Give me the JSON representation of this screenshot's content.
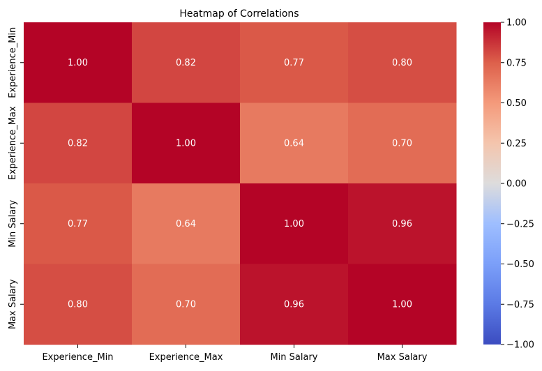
{
  "chart_data": {
    "type": "heatmap",
    "title": "Heatmap of Correlations",
    "xlabel": "",
    "ylabel": "",
    "x_categories": [
      "Experience_Min",
      "Experience_Max",
      "Min Salary",
      "Max Salary"
    ],
    "y_categories": [
      "Experience_Min",
      "Experience_Max",
      "Min Salary",
      "Max Salary"
    ],
    "values": [
      [
        1.0,
        0.82,
        0.77,
        0.8
      ],
      [
        0.82,
        1.0,
        0.64,
        0.7
      ],
      [
        0.77,
        0.64,
        1.0,
        0.96
      ],
      [
        0.8,
        0.7,
        0.96,
        1.0
      ]
    ],
    "value_format": "0.00",
    "colormap": "coolwarm",
    "vmin": -1.0,
    "vmax": 1.0,
    "colorbar_ticks": [
      "1.00",
      "0.75",
      "0.50",
      "0.25",
      "0.00",
      "−0.25",
      "−0.50",
      "−0.75",
      "−1.00"
    ],
    "colorbar_tick_values": [
      1.0,
      0.75,
      0.5,
      0.25,
      0.0,
      -0.25,
      -0.5,
      -0.75,
      -1.0
    ],
    "colors": {
      "low": "#3b4cc0",
      "mid": "#dddddd",
      "high": "#b40426",
      "annotation_text": "#ffffff",
      "axis_text": "#000000"
    }
  }
}
